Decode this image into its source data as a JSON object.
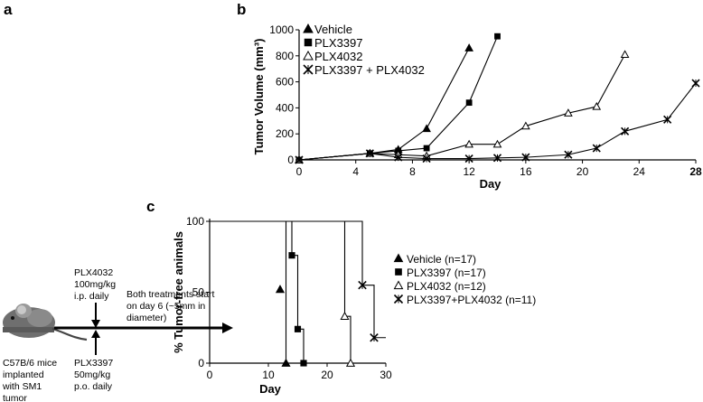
{
  "panel_a": {
    "letter": "a",
    "plx4032_note": [
      "PLX4032",
      "100mg/kg",
      "i.p. daily"
    ],
    "plx3397_note": [
      "PLX3397",
      "50mg/kg",
      "p.o. daily"
    ],
    "mouse_note": [
      "C57B/6 mice",
      "implanted",
      "with SM1",
      "tumor"
    ],
    "treatment_note": [
      "Both treatments start",
      "on day 6 (~5mm in",
      "diameter)"
    ],
    "mouse_icon": "mouse-icon"
  },
  "chart_data": [
    {
      "panel": "b",
      "type": "line",
      "xlabel": "Day",
      "ylabel": "Tumor Volume (mm³)",
      "xlim": [
        0,
        28
      ],
      "ylim": [
        0,
        1000
      ],
      "xticks": [
        "0",
        "4",
        "8",
        "12",
        "16",
        "20",
        "24",
        "28"
      ],
      "yticks": [
        "0",
        "200",
        "400",
        "600",
        "800",
        "1000"
      ],
      "legend_position": "top-left",
      "series": [
        {
          "name": "Vehicle",
          "marker": "triangle-filled",
          "x": [
            0,
            5,
            7,
            9,
            12
          ],
          "y": [
            0,
            50,
            80,
            240,
            860
          ]
        },
        {
          "name": "PLX3397",
          "marker": "square-filled",
          "x": [
            0,
            5,
            7,
            9,
            12,
            14
          ],
          "y": [
            0,
            50,
            70,
            90,
            440,
            950
          ]
        },
        {
          "name": "PLX4032",
          "marker": "triangle-open",
          "x": [
            0,
            5,
            7,
            9,
            12,
            14,
            16,
            19,
            21,
            23
          ],
          "y": [
            0,
            50,
            40,
            30,
            120,
            120,
            260,
            360,
            410,
            810
          ]
        },
        {
          "name": "PLX3397 + PLX4032",
          "marker": "asterisk",
          "x": [
            0,
            5,
            7,
            9,
            12,
            14,
            16,
            19,
            21,
            23,
            26,
            28
          ],
          "y": [
            0,
            50,
            20,
            10,
            10,
            15,
            20,
            40,
            90,
            220,
            310,
            590
          ]
        }
      ]
    },
    {
      "panel": "c",
      "type": "line",
      "subtype": "step",
      "xlabel": "Day",
      "ylabel": "% Tumor-free animals",
      "xlim": [
        0,
        30
      ],
      "ylim": [
        0,
        100
      ],
      "xticks": [
        "0",
        "10",
        "20",
        "30"
      ],
      "yticks": [
        "0",
        "50",
        "100"
      ],
      "legend_position": "right",
      "series": [
        {
          "name": "Vehicle (n=17)",
          "marker": "triangle-filled",
          "x": [
            12,
            13
          ],
          "y": [
            52,
            0
          ]
        },
        {
          "name": "PLX3397 (n=17)",
          "marker": "square-filled",
          "x": [
            14,
            15,
            16
          ],
          "y": [
            76,
            24,
            0
          ]
        },
        {
          "name": "PLX4032 (n=12)",
          "marker": "triangle-open",
          "x": [
            23,
            24
          ],
          "y": [
            33,
            0
          ]
        },
        {
          "name": "PLX3397+PLX4032 (n=11)",
          "marker": "asterisk",
          "x": [
            26,
            28
          ],
          "y": [
            55,
            18
          ]
        }
      ],
      "steps": [
        [
          [
            0,
            100
          ],
          [
            13,
            100
          ],
          [
            13,
            0
          ],
          [
            30,
            0
          ]
        ],
        [
          [
            0,
            100
          ],
          [
            14,
            100
          ],
          [
            14,
            76
          ],
          [
            15,
            76
          ],
          [
            15,
            24
          ],
          [
            16,
            24
          ],
          [
            16,
            0
          ],
          [
            30,
            0
          ]
        ],
        [
          [
            0,
            100
          ],
          [
            23,
            100
          ],
          [
            23,
            33
          ],
          [
            24,
            33
          ],
          [
            24,
            0
          ],
          [
            30,
            0
          ]
        ],
        [
          [
            0,
            100
          ],
          [
            26,
            100
          ],
          [
            26,
            55
          ],
          [
            28,
            55
          ],
          [
            28,
            18
          ],
          [
            30,
            18
          ]
        ]
      ]
    }
  ]
}
